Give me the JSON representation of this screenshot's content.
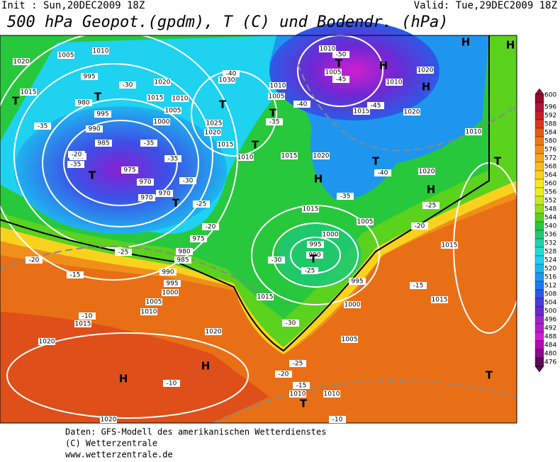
{
  "header": {
    "init": "Init : Sun,20DEC2009 18Z",
    "valid": "Valid: Tue,29DEC2009 18Z",
    "title": "500 hPa Geopot.(gpdm), T (C) und Bodendr. (hPa)"
  },
  "colorbar": {
    "labels": [
      "600",
      "596",
      "592",
      "588",
      "584",
      "580",
      "576",
      "572",
      "568",
      "564",
      "560",
      "556",
      "552",
      "548",
      "544",
      "540",
      "536",
      "532",
      "528",
      "524",
      "520",
      "516",
      "512",
      "508",
      "504",
      "500",
      "496",
      "492",
      "488",
      "484",
      "480",
      "476"
    ],
    "colors": [
      "#9a0a2a",
      "#b0143a",
      "#c81e28",
      "#d83a1e",
      "#e55a14",
      "#ec7812",
      "#f0901a",
      "#f5a81e",
      "#f8be1e",
      "#fad21e",
      "#f8e61e",
      "#e8f01e",
      "#c8ec1e",
      "#96e01e",
      "#5ad21e",
      "#28c83c",
      "#1ec878",
      "#1ed2aa",
      "#1ee0d2",
      "#1ed2f0",
      "#1eb4f0",
      "#1e96f0",
      "#1e78f0",
      "#2d5ae6",
      "#4b3cdc",
      "#6e28d2",
      "#9628c8",
      "#b41ec8",
      "#d21ed2",
      "#b40ab4",
      "#8c0a8c",
      "#5a0a5a"
    ]
  },
  "map": {
    "labels": [
      "1020",
      "1015",
      "1005",
      "1010",
      "995",
      "980",
      "995",
      "990",
      "985",
      "980",
      "975",
      "970",
      "970",
      "970",
      "1020",
      "1015",
      "1010",
      "1005",
      "1000",
      "1025",
      "1020",
      "1015",
      "1010",
      "1030",
      "1010",
      "1005",
      "1015",
      "1020",
      "1015",
      "1005",
      "1000",
      "995",
      "990",
      "995",
      "1000",
      "1005",
      "1010",
      "1015",
      "1015",
      "1015",
      "1020",
      "1020",
      "1020",
      "1010",
      "1010",
      "1005",
      "1015",
      "1010",
      "975",
      "980",
      "985",
      "990",
      "995",
      "1000",
      "1005",
      "1010",
      "1015",
      "1020",
      "1020",
      "1010",
      "1020",
      "-35",
      "-20",
      "-35",
      "-25",
      "-20",
      "-15",
      "-10",
      "-10",
      "-35",
      "-35",
      "-30",
      "-25",
      "-20",
      "-40",
      "-40",
      "-35",
      "-50",
      "-45",
      "-45",
      "-40",
      "-35",
      "-25",
      "-30",
      "-25",
      "-30",
      "-25",
      "-20",
      "-15",
      "-15",
      "-10",
      "-20",
      "-30"
    ],
    "markers": [
      "T",
      "T",
      "T",
      "T",
      "T",
      "T",
      "T",
      "T",
      "T",
      "T",
      "T",
      "T",
      "T",
      "H",
      "H",
      "H",
      "H",
      "H",
      "H",
      "H",
      "H"
    ]
  },
  "footer": {
    "line1": "Daten: GFS-Modell des amerikanischen Wetterdienstes",
    "line2": "(C) Wetterzentrale",
    "line3": "www.wetterzentrale.de"
  }
}
